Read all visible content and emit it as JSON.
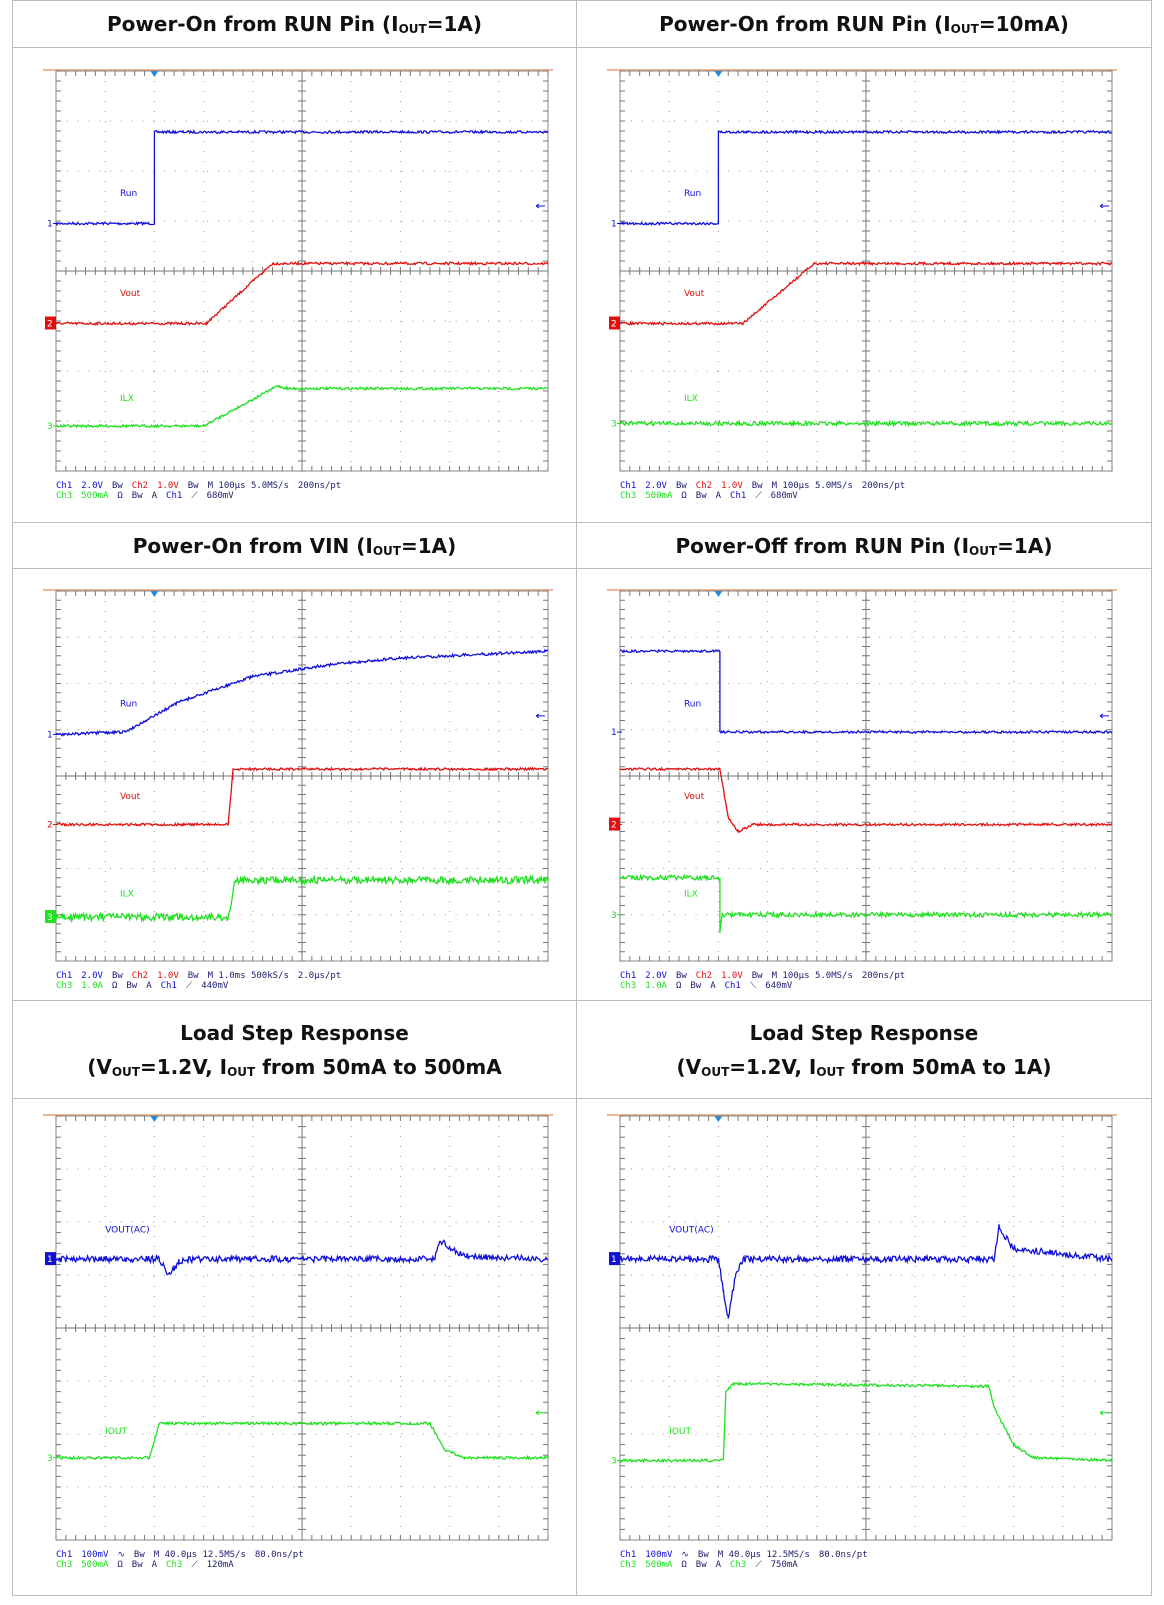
{
  "panels": [
    {
      "title": [
        [
          "Power-On from RUN Pin (I",
          "OUT",
          "=1A)"
        ]
      ],
      "labels": [
        "Run",
        "Vout",
        "ILX"
      ],
      "markers": [
        "1",
        "2",
        "3"
      ],
      "readout": [
        [
          "Ch1",
          "2.0V",
          "Bw",
          "Ch2",
          "1.0V",
          "Bw",
          "M 100µs 5.0MS/s",
          "200ns/pt"
        ],
        [
          "Ch3",
          "500mA",
          "Ω",
          "Bw",
          "A",
          "Ch1",
          "⟋",
          "680mV"
        ]
      ]
    },
    {
      "title": [
        [
          "Power-On from RUN Pin (I",
          "OUT",
          "=10mA)"
        ]
      ],
      "labels": [
        "Run",
        "Vout",
        "ILX"
      ],
      "markers": [
        "1",
        "2",
        "3"
      ],
      "readout": [
        [
          "Ch1",
          "2.0V",
          "Bw",
          "Ch2",
          "1.0V",
          "Bw",
          "M 100µs 5.0MS/s",
          "200ns/pt"
        ],
        [
          "Ch3",
          "500mA",
          "Ω",
          "Bw",
          "A",
          "Ch1",
          "⟋",
          "680mV"
        ]
      ]
    },
    {
      "title": [
        [
          "Power-On from VIN (I",
          "OUT",
          "=1A)"
        ]
      ],
      "labels": [
        "Run",
        "Vout",
        "ILX"
      ],
      "markers": [
        "1",
        "2",
        "3"
      ],
      "readout": [
        [
          "Ch1",
          "2.0V",
          "Bw",
          "Ch2",
          "1.0V",
          "Bw",
          "M 1.0ms 500kS/s",
          "2.0µs/pt"
        ],
        [
          "Ch3",
          "1.0A",
          "Ω",
          "Bw",
          "A",
          "Ch1",
          "⟋",
          "440mV"
        ]
      ]
    },
    {
      "title": [
        [
          "Power-Off from RUN Pin (I",
          "OUT",
          "=1A)"
        ]
      ],
      "labels": [
        "Run",
        "Vout",
        "ILX"
      ],
      "markers": [
        "1",
        "2",
        "3"
      ],
      "readout": [
        [
          "Ch1",
          "2.0V",
          "Bw",
          "Ch2",
          "1.0V",
          "Bw",
          "M 100µs 5.0MS/s",
          "200ns/pt"
        ],
        [
          "Ch3",
          "1.0A",
          "Ω",
          "Bw",
          "A",
          "Ch1",
          "⟍",
          "640mV"
        ]
      ]
    },
    {
      "title": [
        [
          "Load Step Response"
        ],
        [
          "(V",
          "OUT",
          "=1.2V, I",
          "OUT",
          " from 50mA to 500mA"
        ]
      ],
      "labels": [
        "VOUT(AC)",
        "IOUT"
      ],
      "markers": [
        "1",
        "3"
      ],
      "readout": [
        [
          "Ch1",
          "100mV",
          "∿",
          "Bw",
          "M 40.0µs 12.5MS/s",
          "80.0ns/pt"
        ],
        [
          "Ch3",
          "500mA",
          "Ω",
          "Bw",
          "A",
          "Ch3",
          "⟋",
          "120mA"
        ]
      ]
    },
    {
      "title": [
        [
          "Load Step Response"
        ],
        [
          "(V",
          "OUT",
          "=1.2V, I",
          "OUT",
          " from 50mA to 1A)"
        ]
      ],
      "labels": [
        "VOUT(AC)",
        "IOUT"
      ],
      "markers": [
        "1",
        "3"
      ],
      "readout": [
        [
          "Ch1",
          "100mV",
          "∿",
          "Bw",
          "M 40.0µs 12.5MS/s",
          "80.0ns/pt"
        ],
        [
          "Ch3",
          "500mA",
          "Ω",
          "Bw",
          "A",
          "Ch3",
          "⟋",
          "750mA"
        ]
      ]
    }
  ]
}
